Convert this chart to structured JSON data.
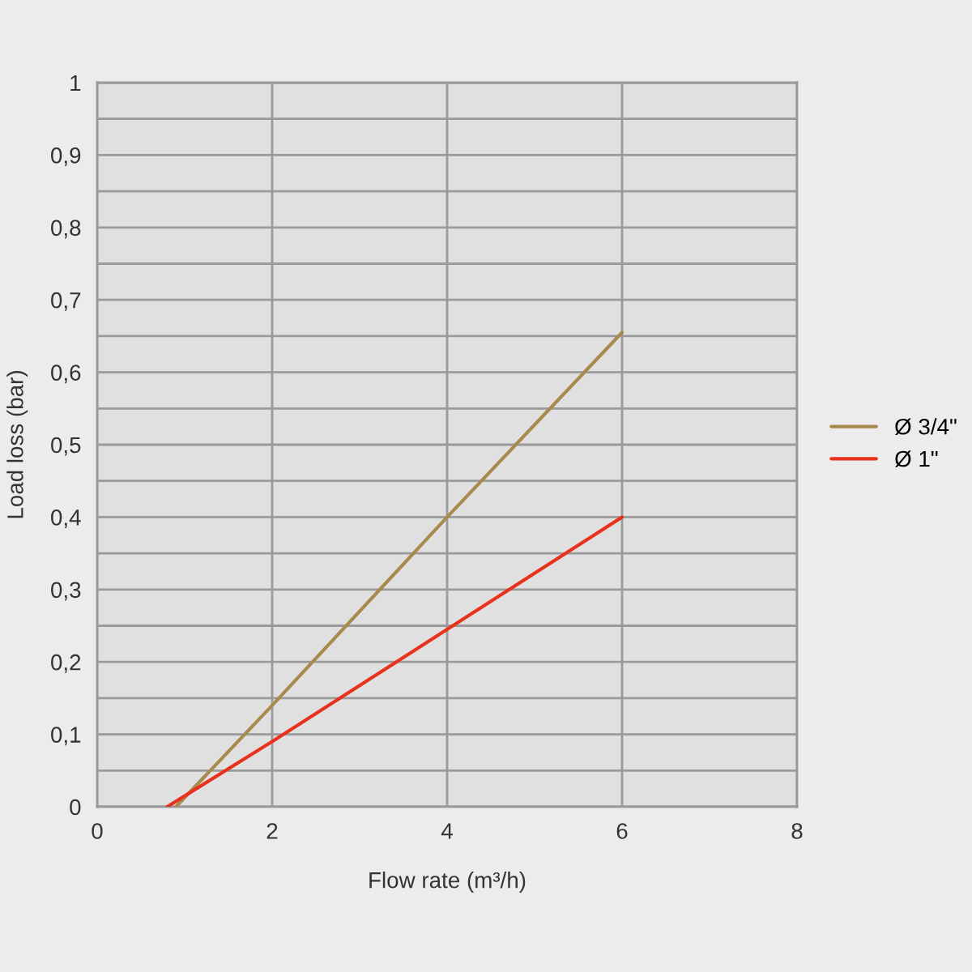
{
  "chart_data": {
    "type": "line",
    "xlabel": "Flow rate (m³/h)",
    "ylabel": "Load loss (bar)",
    "xlim": [
      0,
      8
    ],
    "xticks": [
      0,
      2,
      4,
      6,
      8
    ],
    "ylim": [
      0,
      1
    ],
    "yticks": [
      0,
      {
        "value": 0.05,
        "label": null
      },
      {
        "value": 0.1,
        "label": "0,1"
      },
      {
        "value": 0.15,
        "label": null
      },
      {
        "value": 0.2,
        "label": "0,2"
      },
      {
        "value": 0.25,
        "label": null
      },
      {
        "value": 0.3,
        "label": "0,3"
      },
      {
        "value": 0.35,
        "label": null
      },
      {
        "value": 0.4,
        "label": "0,4"
      },
      {
        "value": 0.45,
        "label": null
      },
      {
        "value": 0.5,
        "label": "0,5"
      },
      {
        "value": 0.55,
        "label": null
      },
      {
        "value": 0.6,
        "label": "0,6"
      },
      {
        "value": 0.65,
        "label": null
      },
      {
        "value": 0.7,
        "label": "0,7"
      },
      {
        "value": 0.75,
        "label": null
      },
      {
        "value": 0.8,
        "label": "0,8"
      },
      {
        "value": 0.85,
        "label": null
      },
      {
        "value": 0.9,
        "label": "0,9"
      },
      {
        "value": 0.95,
        "label": null
      },
      1
    ],
    "grid": true,
    "legend": "right",
    "marker": "none",
    "line_style": "solid",
    "series": [
      {
        "name": "Ø 3/4\"",
        "color": "#a88a4f",
        "x": [
          0.9,
          2,
          4,
          6
        ],
        "values": [
          0,
          0.14,
          0.4,
          0.655
        ]
      },
      {
        "name": "Ø 1\"",
        "color": "#e8321e",
        "x": [
          0.8,
          2,
          4,
          6
        ],
        "values": [
          0,
          0.09,
          0.245,
          0.4
        ]
      }
    ]
  }
}
